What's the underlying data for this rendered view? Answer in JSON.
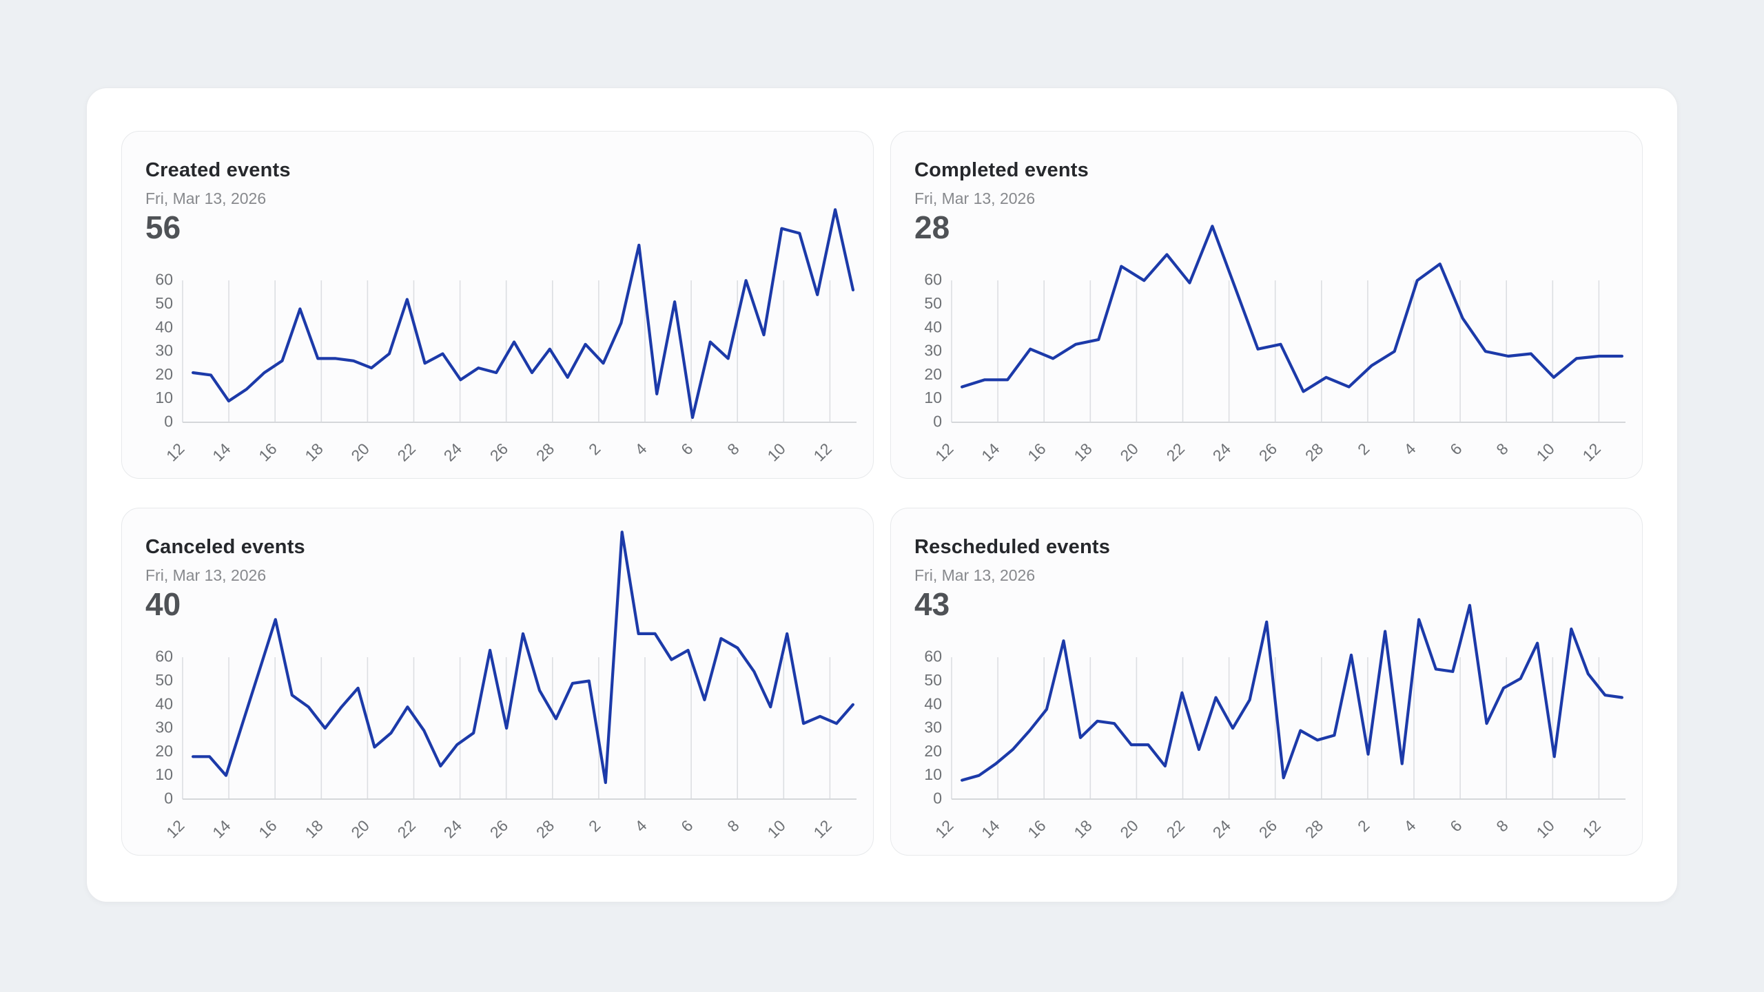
{
  "cards": [
    {
      "title": "Created events",
      "date": "Fri, Mar 13, 2026",
      "value": "56"
    },
    {
      "title": "Completed events",
      "date": "Fri, Mar 13, 2026",
      "value": "28"
    },
    {
      "title": "Canceled events",
      "date": "Fri, Mar 13, 2026",
      "value": "40"
    },
    {
      "title": "Rescheduled events",
      "date": "Fri, Mar 13, 2026",
      "value": "43"
    }
  ],
  "chart_data": [
    {
      "type": "line",
      "title": "Created events",
      "highlight_date": "Fri, Mar 13, 2026",
      "highlight_value": 56,
      "xlabel": "",
      "ylabel": "",
      "x_tick_labels": [
        "12",
        "14",
        "16",
        "18",
        "20",
        "22",
        "24",
        "26",
        "28",
        "2",
        "4",
        "6",
        "8",
        "10",
        "12"
      ],
      "x_tick_day_offsets": [
        0,
        2,
        4,
        6,
        8,
        10,
        12,
        14,
        16,
        18,
        20,
        22,
        24,
        26,
        28
      ],
      "x_range_days": "Feb 12 - Mar 13",
      "y_ticks": [
        0,
        10,
        20,
        30,
        40,
        50,
        60
      ],
      "ylim": [
        0,
        115
      ],
      "grid": "vertical-only",
      "legend": "none",
      "line_color": "#1c3aa9",
      "values": [
        21,
        20,
        9,
        14,
        21,
        26,
        48,
        27,
        27,
        26,
        23,
        29,
        52,
        25,
        29,
        18,
        23,
        21,
        34,
        21,
        31,
        19,
        33,
        25,
        42,
        75,
        12,
        51,
        2,
        34,
        27,
        60,
        37,
        82,
        80,
        54,
        90,
        56
      ]
    },
    {
      "type": "line",
      "title": "Completed events",
      "highlight_date": "Fri, Mar 13, 2026",
      "highlight_value": 28,
      "xlabel": "",
      "ylabel": "",
      "x_tick_labels": [
        "12",
        "14",
        "16",
        "18",
        "20",
        "22",
        "24",
        "26",
        "28",
        "2",
        "4",
        "6",
        "8",
        "10",
        "12"
      ],
      "x_tick_day_offsets": [
        0,
        2,
        4,
        6,
        8,
        10,
        12,
        14,
        16,
        18,
        20,
        22,
        24,
        26,
        28
      ],
      "x_range_days": "Feb 12 - Mar 13",
      "y_ticks": [
        0,
        10,
        20,
        30,
        40,
        50,
        60
      ],
      "ylim": [
        0,
        115
      ],
      "grid": "vertical-only",
      "legend": "none",
      "line_color": "#1c3aa9",
      "values": [
        15,
        18,
        18,
        31,
        27,
        33,
        35,
        66,
        60,
        71,
        59,
        83,
        57,
        31,
        33,
        13,
        19,
        15,
        24,
        30,
        60,
        67,
        44,
        30,
        28,
        29,
        19,
        27,
        28,
        28
      ]
    },
    {
      "type": "line",
      "title": "Canceled events",
      "highlight_date": "Fri, Mar 13, 2026",
      "highlight_value": 40,
      "xlabel": "",
      "ylabel": "",
      "x_tick_labels": [
        "12",
        "14",
        "16",
        "18",
        "20",
        "22",
        "24",
        "26",
        "28",
        "2",
        "4",
        "6",
        "8",
        "10",
        "12"
      ],
      "x_tick_day_offsets": [
        0,
        2,
        4,
        6,
        8,
        10,
        12,
        14,
        16,
        18,
        20,
        22,
        24,
        26,
        28
      ],
      "x_range_days": "Feb 12 - Mar 13",
      "y_ticks": [
        0,
        10,
        20,
        30,
        40,
        50,
        60
      ],
      "ylim": [
        0,
        115
      ],
      "grid": "vertical-only",
      "legend": "none",
      "line_color": "#1c3aa9",
      "values": [
        18,
        18,
        10,
        32,
        54,
        76,
        44,
        39,
        30,
        39,
        47,
        22,
        28,
        39,
        29,
        14,
        23,
        28,
        63,
        30,
        70,
        46,
        34,
        49,
        50,
        7,
        113,
        70,
        70,
        59,
        63,
        42,
        68,
        64,
        54,
        39,
        70,
        32,
        35,
        32,
        40
      ]
    },
    {
      "type": "line",
      "title": "Rescheduled events",
      "highlight_date": "Fri, Mar 13, 2026",
      "highlight_value": 43,
      "xlabel": "",
      "ylabel": "",
      "x_tick_labels": [
        "12",
        "14",
        "16",
        "18",
        "20",
        "22",
        "24",
        "26",
        "28",
        "2",
        "4",
        "6",
        "8",
        "10",
        "12"
      ],
      "x_tick_day_offsets": [
        0,
        2,
        4,
        6,
        8,
        10,
        12,
        14,
        16,
        18,
        20,
        22,
        24,
        26,
        28
      ],
      "x_range_days": "Feb 12 - Mar 13",
      "y_ticks": [
        0,
        10,
        20,
        30,
        40,
        50,
        60
      ],
      "ylim": [
        0,
        115
      ],
      "grid": "vertical-only",
      "legend": "none",
      "line_color": "#1c3aa9",
      "values": [
        8,
        10,
        15,
        21,
        29,
        38,
        67,
        26,
        33,
        32,
        23,
        23,
        14,
        45,
        21,
        43,
        30,
        42,
        75,
        9,
        29,
        25,
        27,
        61,
        19,
        71,
        15,
        76,
        55,
        54,
        82,
        32,
        47,
        51,
        66,
        18,
        72,
        53,
        44,
        43
      ]
    }
  ]
}
